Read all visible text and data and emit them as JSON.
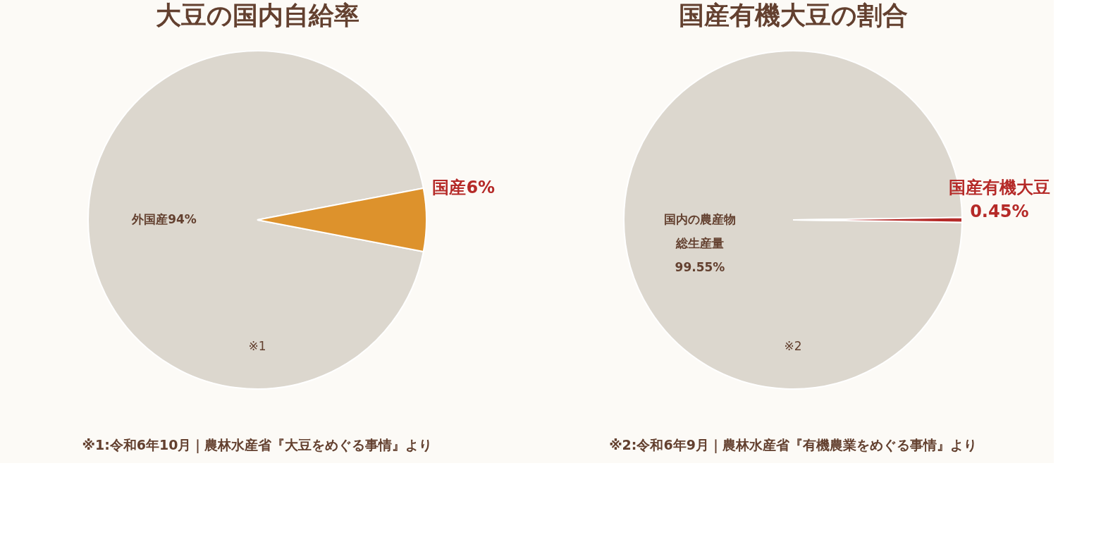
{
  "chart_data": [
    {
      "type": "pie",
      "title": "大豆の国内自給率",
      "categories": [
        "外国産",
        "国産"
      ],
      "values": [
        94,
        6
      ],
      "value_labels": [
        "94%",
        "6%"
      ],
      "colors": [
        "#dcd7ce",
        "#dd922c"
      ],
      "annotations": [
        "※1",
        "※1:令和6年10月｜農林水産省『大豆をめぐる事情』より"
      ]
    },
    {
      "type": "pie",
      "title": "国産有機大豆の割合",
      "categories": [
        "国内の農産物総生産量",
        "国産有機大豆"
      ],
      "values": [
        99.55,
        0.45
      ],
      "value_labels": [
        "99.55%",
        "0.45%"
      ],
      "colors": [
        "#dcd7ce",
        "#b52a28"
      ],
      "annotations": [
        "※2",
        "※2:令和6年9月｜農林水産省『有機農業をめぐる事情』より"
      ]
    }
  ]
}
